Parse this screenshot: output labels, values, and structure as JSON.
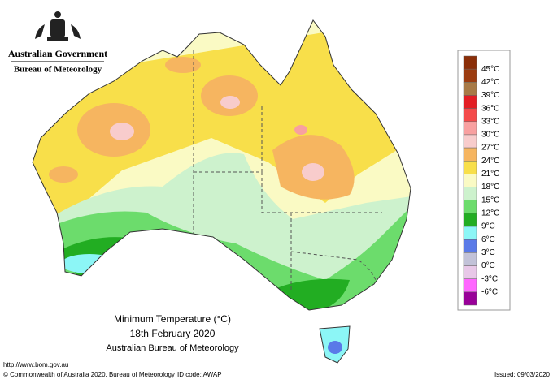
{
  "header": {
    "government": "Australian Government",
    "bureau": "Bureau of Meteorology"
  },
  "map": {
    "title": "Minimum Temperature (°C)",
    "date": "18th February 2020",
    "source": "Australian Bureau of Meteorology"
  },
  "legend": {
    "labels": [
      "45°C",
      "42°C",
      "39°C",
      "36°C",
      "33°C",
      "30°C",
      "27°C",
      "24°C",
      "21°C",
      "18°C",
      "15°C",
      "12°C",
      "9°C",
      "6°C",
      "3°C",
      "0°C",
      "-3°C",
      "-6°C"
    ],
    "colors": [
      "#9c3c10",
      "#a87a46",
      "#e31e24",
      "#f44a4a",
      "#f8a0a0",
      "#f8cccc",
      "#f6b560",
      "#f8df4a",
      "#fafac4",
      "#cdf2cd",
      "#6cdc6c",
      "#22ad22",
      "#8cf6f6",
      "#5a7ae8",
      "#c2c2d8",
      "#e8c8e8",
      "#ff66ff",
      "#990099"
    ]
  },
  "footer": {
    "url": "http://www.bom.gov.au",
    "copyright": "© Commonwealth of Australia 2020, Bureau of Meteorology",
    "id_code": "ID code: AWAP",
    "issued": "Issued: 09/03/2020"
  }
}
